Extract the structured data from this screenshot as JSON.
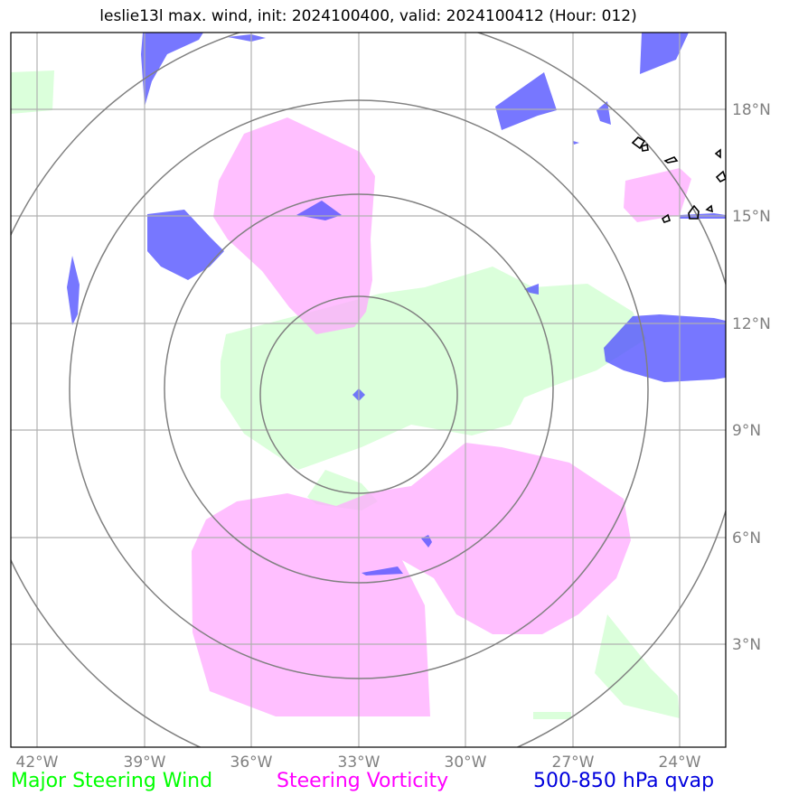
{
  "title": "leslie13l max. wind, init: 2024100400, valid: 2024100412 (Hour: 012)",
  "map": {
    "center": {
      "lon": -33.0,
      "lat": 10.0
    },
    "lon_range": [
      -42.7,
      -22.3
    ],
    "lat_range": [
      0.2,
      19.7
    ],
    "range_rings_deg": [
      3,
      6,
      9,
      12
    ],
    "lon_ticks": [
      "42°W",
      "39°W",
      "36°W",
      "33°W",
      "30°W",
      "27°W",
      "24°W"
    ],
    "lat_ticks": [
      "3°N",
      "6°N",
      "9°N",
      "12°N",
      "15°N",
      "18°N"
    ],
    "grid": true,
    "colors": {
      "major_steering_wind": "#00ff00",
      "steering_vorticity": "#ff00ff",
      "qvap": "#0000ff",
      "rings": "#808080",
      "coastline": "#000000"
    }
  },
  "legend": {
    "major_steering_wind": "Major Steering Wind",
    "steering_vorticity": "Steering Vorticity",
    "qvap": "500-850 hPa qvap"
  }
}
